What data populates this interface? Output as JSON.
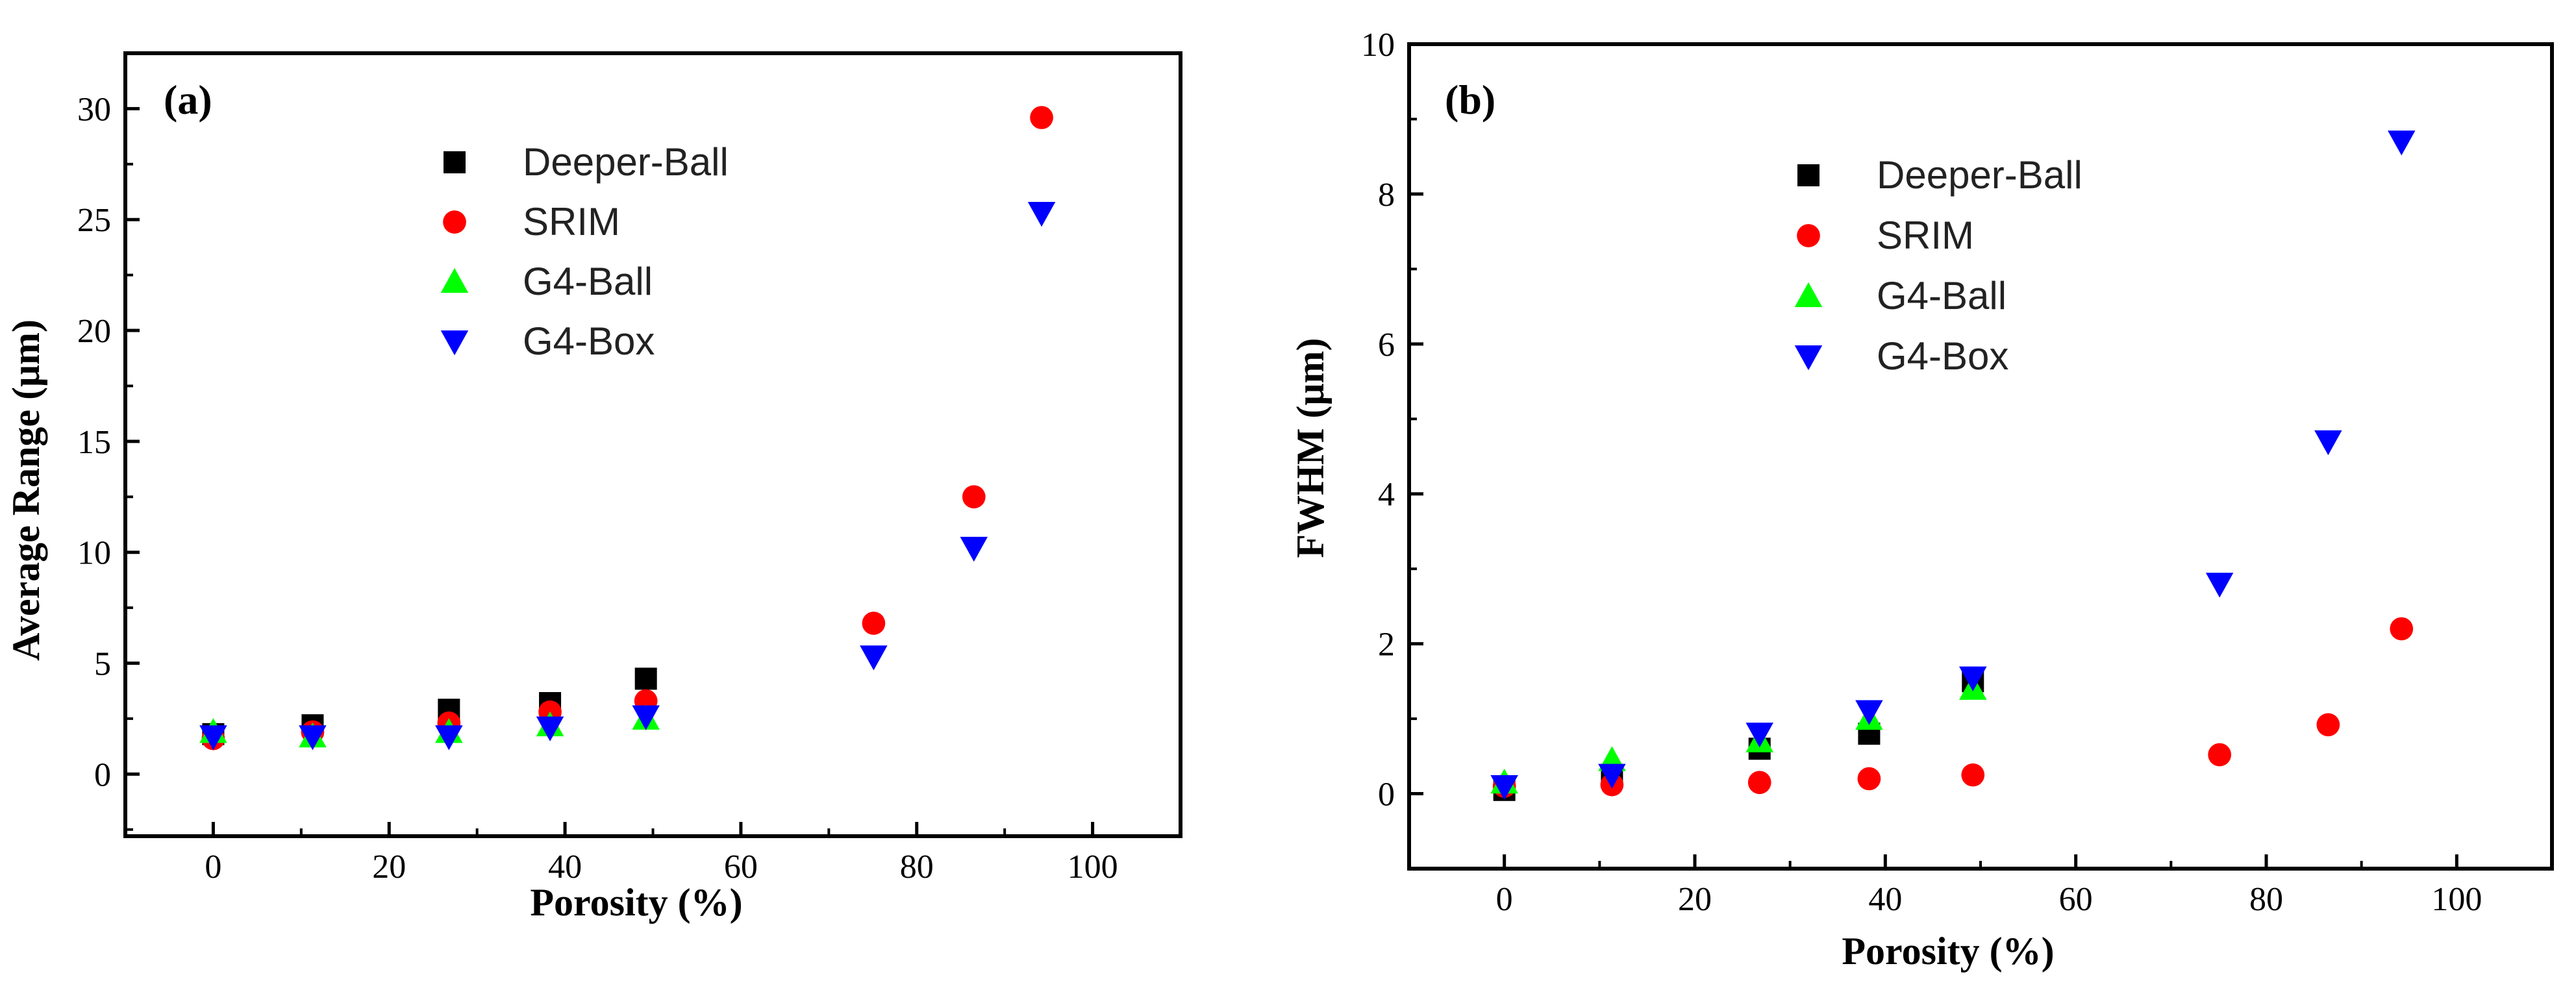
{
  "chart_data": [
    {
      "type": "scatter",
      "panel_label": "(a)",
      "xlabel": "Porosity (%)",
      "ylabel": "Average Range (μm)",
      "xlim": [
        -10,
        110
      ],
      "ylim": [
        -2.8,
        32.5
      ],
      "xticks": [
        0,
        20,
        40,
        60,
        80,
        100
      ],
      "xtick_labels": [
        "0",
        "20",
        "40",
        "60",
        "80",
        "100"
      ],
      "yticks": [
        0,
        5,
        10,
        15,
        20,
        25,
        30
      ],
      "ytick_labels": [
        "0",
        "5",
        "10",
        "15",
        "20",
        "25",
        "30"
      ],
      "legend_position": "top-center",
      "series": [
        {
          "name": "Deeper-Ball",
          "marker": "square",
          "color": "#000000",
          "x": [
            0,
            11.3,
            26.8,
            38.3,
            49.2
          ],
          "y": [
            1.8,
            2.2,
            2.9,
            3.2,
            4.3
          ]
        },
        {
          "name": "SRIM",
          "marker": "circle",
          "color": "#ff0000",
          "x": [
            0,
            11.3,
            26.8,
            38.3,
            49.2,
            75.1,
            86.5,
            94.2
          ],
          "y": [
            1.6,
            1.9,
            2.3,
            2.8,
            3.3,
            6.8,
            12.5,
            29.6
          ]
        },
        {
          "name": "G4-Ball",
          "marker": "triangle-up",
          "color": "#00ff00",
          "x": [
            0,
            11.3,
            26.8,
            38.3,
            49.2
          ],
          "y": [
            1.9,
            1.7,
            1.9,
            2.2,
            2.5
          ]
        },
        {
          "name": "G4-Box",
          "marker": "triangle-down",
          "color": "#0000ff",
          "x": [
            0,
            11.3,
            26.8,
            38.3,
            49.2,
            75.1,
            86.5,
            94.2
          ],
          "y": [
            1.7,
            1.7,
            1.7,
            2.1,
            2.6,
            5.3,
            10.2,
            25.3
          ]
        }
      ]
    },
    {
      "type": "scatter",
      "panel_label": "(b)",
      "xlabel": "Porosity (%)",
      "ylabel": "FWHM (μm)",
      "xlim": [
        -10,
        110
      ],
      "ylim": [
        -1,
        10
      ],
      "xticks": [
        0,
        20,
        40,
        60,
        80,
        100
      ],
      "xtick_labels": [
        "0",
        "20",
        "40",
        "60",
        "80",
        "100"
      ],
      "yticks": [
        0,
        2,
        4,
        6,
        8,
        10
      ],
      "ytick_labels": [
        "0",
        "2",
        "4",
        "6",
        "8",
        "10"
      ],
      "legend_position": "top-center",
      "series": [
        {
          "name": "Deeper-Ball",
          "marker": "square",
          "color": "#000000",
          "x": [
            0,
            11.3,
            26.8,
            38.3,
            49.2
          ],
          "y": [
            0.05,
            0.25,
            0.6,
            0.8,
            1.5
          ]
        },
        {
          "name": "SRIM",
          "marker": "circle",
          "color": "#ff0000",
          "x": [
            0,
            11.3,
            26.8,
            38.3,
            49.2,
            75.1,
            86.5,
            94.2
          ],
          "y": [
            0.1,
            0.12,
            0.15,
            0.2,
            0.25,
            0.52,
            0.92,
            2.2
          ]
        },
        {
          "name": "G4-Ball",
          "marker": "triangle-up",
          "color": "#00ff00",
          "x": [
            0,
            11.3,
            26.8,
            38.3,
            49.2
          ],
          "y": [
            0.15,
            0.45,
            0.7,
            1.0,
            1.4
          ]
        },
        {
          "name": "G4-Box",
          "marker": "triangle-down",
          "color": "#0000ff",
          "x": [
            0,
            11.3,
            26.8,
            38.3,
            49.2,
            75.1,
            86.5,
            94.2
          ],
          "y": [
            0.1,
            0.25,
            0.8,
            1.1,
            1.55,
            2.8,
            4.7,
            8.7
          ]
        }
      ]
    }
  ]
}
